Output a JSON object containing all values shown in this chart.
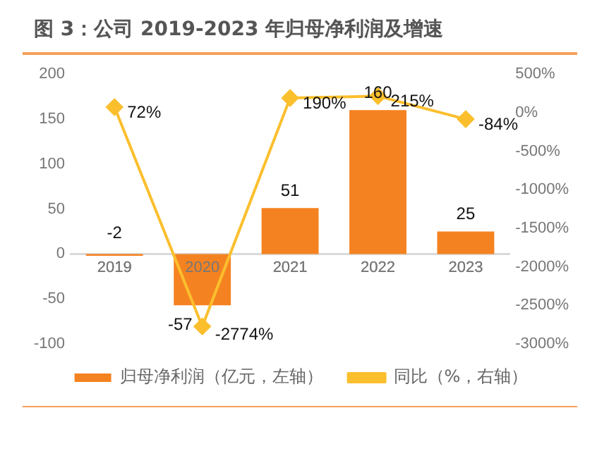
{
  "chart_data": {
    "type": "bar",
    "title": "图 3：公司 2019-2023 年归母净利润及增速",
    "categories": [
      "2019",
      "2020",
      "2021",
      "2022",
      "2023"
    ],
    "series": [
      {
        "name": "归母净利润（亿元，左轴）",
        "color": "#f58220",
        "values": [
          -2,
          -57,
          51,
          160,
          25
        ],
        "value_labels": [
          "-2",
          "-57",
          "51",
          "160",
          "25"
        ]
      },
      {
        "name": "同比（%，右轴）",
        "type": "line",
        "axis": "y2",
        "color": "#fbbf2e",
        "marker": "diamond",
        "values": [
          72,
          -2774,
          190,
          215,
          -84
        ],
        "value_labels": [
          "72%",
          "-2774%",
          "190%",
          "215%",
          "-84%"
        ]
      }
    ],
    "ylim": [
      -100,
      200
    ],
    "yticks": [
      -100,
      -50,
      0,
      50,
      100,
      150,
      200
    ],
    "y2lim": [
      -3000,
      500
    ],
    "y2ticks": [
      {
        "value": -3000,
        "label": "-3000%"
      },
      {
        "value": -2500,
        "label": "-2500%"
      },
      {
        "value": -2000,
        "label": "-2000%"
      },
      {
        "value": -1500,
        "label": "-1500%"
      },
      {
        "value": -1000,
        "label": "-1000%"
      },
      {
        "value": -500,
        "label": "-500%"
      },
      {
        "value": 0,
        "label": "0%"
      },
      {
        "value": 500,
        "label": "500%"
      }
    ],
    "grid": false,
    "legend": "bottom"
  }
}
